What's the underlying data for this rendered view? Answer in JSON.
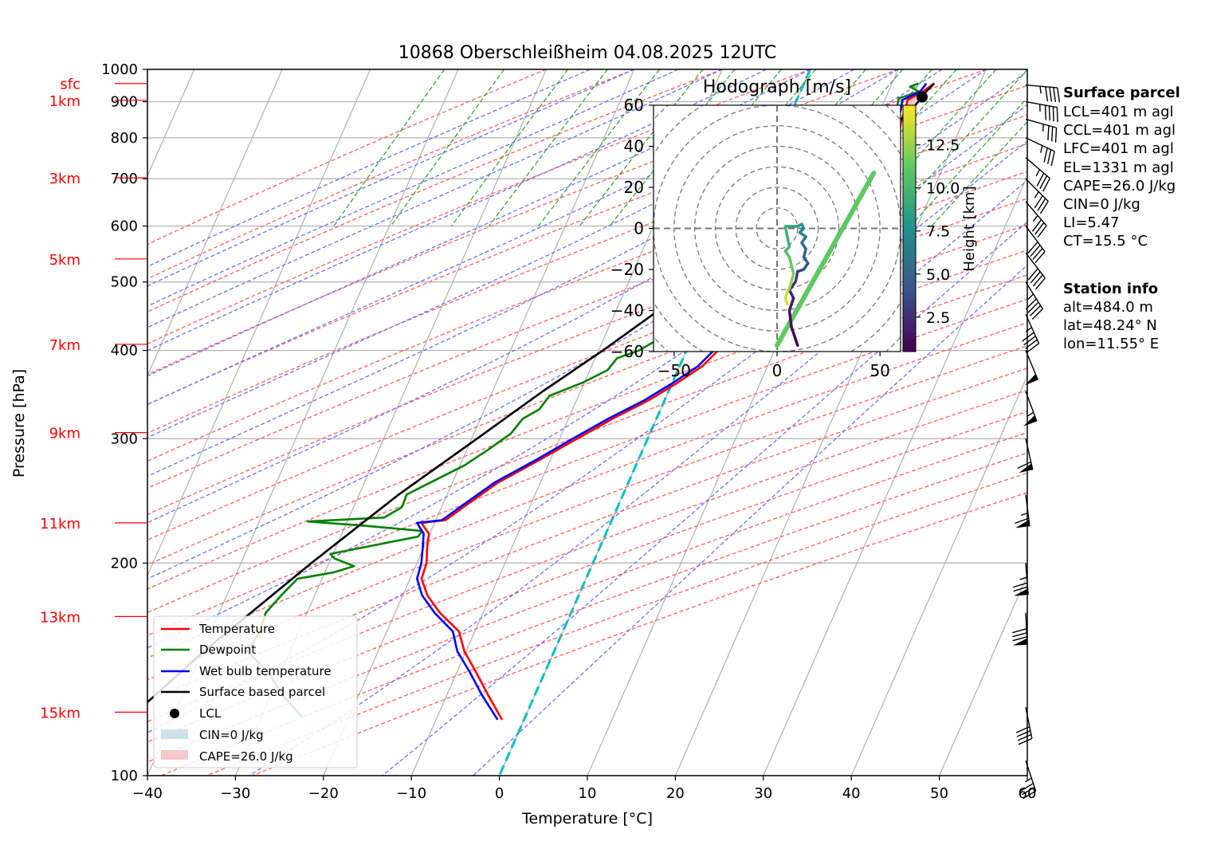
{
  "chart_data": {
    "type": "line",
    "title": "10868 Oberschleißheim 04.08.2025 12UTC",
    "xlabel": "Temperature [°C]",
    "ylabel": "Pressure [hPa]",
    "xlim": [
      -40,
      60
    ],
    "ylim": [
      1000,
      100
    ],
    "y_scale": "log",
    "x_ticks": [
      "−40",
      "−30",
      "−20",
      "−10",
      "0",
      "10",
      "20",
      "30",
      "40",
      "50",
      "60"
    ],
    "p_ticks": [
      {
        "p": 100,
        "label": "100"
      },
      {
        "p": 200,
        "label": "200"
      },
      {
        "p": 300,
        "label": "300"
      },
      {
        "p": 400,
        "label": "400"
      },
      {
        "p": 500,
        "label": "500"
      },
      {
        "p": 600,
        "label": "600"
      },
      {
        "p": 700,
        "label": "700"
      },
      {
        "p": 800,
        "label": "800"
      },
      {
        "p": 900,
        "label": "900"
      },
      {
        "p": 1000,
        "label": "1000"
      }
    ],
    "height_labels": [
      {
        "p": 123,
        "label": "15km"
      },
      {
        "p": 168,
        "label": "13km"
      },
      {
        "p": 228,
        "label": "11km"
      },
      {
        "p": 306,
        "label": "9km"
      },
      {
        "p": 408,
        "label": "7km"
      },
      {
        "p": 539,
        "label": "5km"
      },
      {
        "p": 702,
        "label": "3km"
      },
      {
        "p": 904,
        "label": "1km"
      },
      {
        "p": 955,
        "label": "sfc"
      }
    ],
    "series": [
      {
        "name": "Temperature",
        "color": "#ff0000",
        "points": [
          [
            955,
            14.8
          ],
          [
            930,
            13.9
          ],
          [
            905,
            12.6
          ],
          [
            880,
            12.8
          ],
          [
            850,
            12.9
          ],
          [
            820,
            13.2
          ],
          [
            800,
            12.5
          ],
          [
            780,
            12.2
          ],
          [
            760,
            12.8
          ],
          [
            740,
            11.9
          ],
          [
            720,
            11.8
          ],
          [
            700,
            10.8
          ],
          [
            660,
            11.3
          ],
          [
            620,
            11.5
          ],
          [
            580,
            10.7
          ],
          [
            540,
            9.5
          ],
          [
            500,
            8.1
          ],
          [
            460,
            6.2
          ],
          [
            430,
            4.5
          ],
          [
            400,
            3.6
          ],
          [
            380,
            2.6
          ],
          [
            360,
            0.6
          ],
          [
            340,
            -1.8
          ],
          [
            320,
            -5.0
          ],
          [
            300,
            -8.0
          ],
          [
            280,
            -11.2
          ],
          [
            260,
            -14.8
          ],
          [
            240,
            -17.5
          ],
          [
            230,
            -18.9
          ],
          [
            228,
            -21.5
          ],
          [
            220,
            -20.1
          ],
          [
            210,
            -19.6
          ],
          [
            200,
            -18.9
          ],
          [
            190,
            -18.7
          ],
          [
            180,
            -17.2
          ],
          [
            170,
            -14.9
          ],
          [
            160,
            -11.8
          ],
          [
            150,
            -10.2
          ],
          [
            140,
            -7.8
          ],
          [
            130,
            -5.3
          ],
          [
            120,
            -2.5
          ]
        ]
      },
      {
        "name": "Dewpoint",
        "color": "#008000",
        "points": [
          [
            955,
            13.0
          ],
          [
            945,
            12.2
          ],
          [
            930,
            13.5
          ],
          [
            910,
            11.5
          ],
          [
            880,
            11.8
          ],
          [
            850,
            12.0
          ],
          [
            820,
            11.3
          ],
          [
            800,
            11.6
          ],
          [
            770,
            10.0
          ],
          [
            760,
            8.5
          ],
          [
            750,
            9.8
          ],
          [
            740,
            12.2
          ],
          [
            730,
            10.8
          ],
          [
            700,
            10.2
          ],
          [
            660,
            9.8
          ],
          [
            620,
            8.8
          ],
          [
            580,
            7.3
          ],
          [
            540,
            6.3
          ],
          [
            500,
            5.4
          ],
          [
            460,
            4.0
          ],
          [
            440,
            2.2
          ],
          [
            430,
            0.5
          ],
          [
            420,
            -1.9
          ],
          [
            410,
            -4.3
          ],
          [
            400,
            -5.4
          ],
          [
            390,
            -7.5
          ],
          [
            375,
            -8.0
          ],
          [
            360,
            -10.2
          ],
          [
            345,
            -13.3
          ],
          [
            330,
            -13.8
          ],
          [
            320,
            -15.2
          ],
          [
            305,
            -15.8
          ],
          [
            290,
            -17.5
          ],
          [
            275,
            -19.5
          ],
          [
            260,
            -22.5
          ],
          [
            250,
            -24.6
          ],
          [
            240,
            -24.5
          ],
          [
            232,
            -26.0
          ],
          [
            229,
            -34.5
          ],
          [
            226,
            -28.0
          ],
          [
            222,
            -21.0
          ],
          [
            218,
            -21.2
          ],
          [
            212,
            -25.7
          ],
          [
            206,
            -30.3
          ],
          [
            203,
            -29.6
          ],
          [
            198,
            -27.0
          ],
          [
            194,
            -29.0
          ],
          [
            190,
            -32.8
          ],
          [
            180,
            -33.8
          ],
          [
            170,
            -34.7
          ],
          [
            160,
            -34.4
          ],
          [
            150,
            -34.9
          ],
          [
            140,
            -31.4
          ],
          [
            130,
            -28.7
          ],
          [
            121,
            -25.3
          ]
        ]
      },
      {
        "name": "Wet bulb temperature",
        "color": "#0000ff",
        "points": [
          [
            955,
            13.9
          ],
          [
            930,
            13.6
          ],
          [
            905,
            12.0
          ],
          [
            880,
            12.3
          ],
          [
            850,
            12.5
          ],
          [
            820,
            12.2
          ],
          [
            800,
            11.9
          ],
          [
            780,
            11.6
          ],
          [
            760,
            11.0
          ],
          [
            740,
            10.8
          ],
          [
            720,
            10.7
          ],
          [
            700,
            10.5
          ],
          [
            660,
            10.9
          ],
          [
            620,
            10.8
          ],
          [
            580,
            10.2
          ],
          [
            540,
            9.0
          ],
          [
            500,
            7.6
          ],
          [
            460,
            5.8
          ],
          [
            430,
            4.0
          ],
          [
            400,
            3.1
          ],
          [
            380,
            2.1
          ],
          [
            360,
            0.1
          ],
          [
            340,
            -2.3
          ],
          [
            320,
            -5.5
          ],
          [
            300,
            -8.5
          ],
          [
            280,
            -11.6
          ],
          [
            260,
            -15.2
          ],
          [
            240,
            -17.9
          ],
          [
            230,
            -19.3
          ],
          [
            228,
            -22.0
          ],
          [
            220,
            -20.7
          ],
          [
            210,
            -20.1
          ],
          [
            200,
            -19.5
          ],
          [
            190,
            -19.2
          ],
          [
            180,
            -17.8
          ],
          [
            170,
            -15.5
          ],
          [
            160,
            -12.5
          ],
          [
            150,
            -11.0
          ],
          [
            140,
            -8.5
          ],
          [
            130,
            -6.0
          ],
          [
            120,
            -3.0
          ]
        ]
      },
      {
        "name": "Surface based parcel",
        "color": "#000000",
        "points": [
          [
            955,
            14.8
          ],
          [
            930,
            14.3
          ],
          [
            914,
            14.1
          ],
          [
            880,
            13.6
          ],
          [
            850,
            12.9
          ],
          [
            800,
            11.3
          ],
          [
            750,
            9.4
          ],
          [
            700,
            7.7
          ],
          [
            650,
            5.4
          ],
          [
            600,
            3.2
          ],
          [
            550,
            0.6
          ],
          [
            500,
            -2.4
          ],
          [
            450,
            -5.6
          ],
          [
            400,
            -9.5
          ],
          [
            350,
            -14.3
          ],
          [
            300,
            -19.4
          ],
          [
            250,
            -25.5
          ],
          [
            200,
            -32.0
          ],
          [
            150,
            -39.8
          ],
          [
            120,
            -45.0
          ]
        ]
      }
    ],
    "lcl_point": {
      "p": 914,
      "t": 14.1
    },
    "legend": {
      "placement": "lower-left",
      "entries": [
        "Temperature",
        "Dewpoint",
        "Wet bulb temperature",
        "Surface based parcel",
        "LCL",
        "CIN=0 J/kg",
        "CAPE=26.0 J/kg"
      ]
    },
    "hodograph": {
      "title": "Hodograph [m/s]",
      "xlim": [
        -60,
        60
      ],
      "ylim": [
        -60,
        60
      ],
      "x_ticks": [
        "−50",
        "0",
        "50"
      ],
      "y_ticks": [
        "60",
        "40",
        "20",
        "0",
        "−20",
        "−40",
        "−60"
      ],
      "colorbar_label": "Height [km]",
      "colorbar_ticks": [
        "2.5",
        "5.0",
        "7.5",
        "10.0",
        "12.5"
      ],
      "colorbar_range": [
        0.5,
        14.8
      ],
      "trace": [
        [
          10,
          -57,
          0.5
        ],
        [
          7,
          -48,
          1.0
        ],
        [
          6,
          -40,
          1.5
        ],
        [
          8,
          -34,
          2.0
        ],
        [
          6,
          -30,
          2.5
        ],
        [
          9,
          -26,
          3.0
        ],
        [
          10,
          -21,
          3.5
        ],
        [
          13,
          -20,
          4.0
        ],
        [
          15,
          -17,
          4.5
        ],
        [
          13,
          -14,
          5.0
        ],
        [
          14,
          -10,
          5.5
        ],
        [
          12,
          -7,
          6.0
        ],
        [
          14,
          -4,
          6.5
        ],
        [
          11,
          -2,
          7.0
        ],
        [
          13,
          0,
          7.5
        ],
        [
          12,
          2,
          8.0
        ],
        [
          10,
          1,
          8.5
        ],
        [
          7,
          1,
          9.0
        ],
        [
          4,
          1,
          9.5
        ],
        [
          6,
          -9,
          10.0
        ],
        [
          4,
          -11,
          10.5
        ],
        [
          6,
          -14,
          11.0
        ],
        [
          7,
          -18,
          11.5
        ],
        [
          8,
          -22,
          12.0
        ],
        [
          7,
          -26,
          12.5
        ],
        [
          6,
          -29,
          13.0
        ],
        [
          5,
          -31,
          13.5
        ],
        [
          4,
          -34,
          14.0
        ],
        [
          5,
          -37,
          14.8
        ]
      ],
      "mean_wind_line": [
        [
          0,
          -57
        ],
        [
          47,
          27
        ]
      ]
    },
    "wind_barbs": [
      {
        "p": 950,
        "u": -24,
        "v": 2
      },
      {
        "p": 900,
        "u": -22,
        "v": 4
      },
      {
        "p": 850,
        "u": -18,
        "v": 5
      },
      {
        "p": 800,
        "u": -17,
        "v": 8
      },
      {
        "p": 750,
        "u": -14,
        "v": 12
      },
      {
        "p": 700,
        "u": -13,
        "v": 13
      },
      {
        "p": 650,
        "u": -12,
        "v": 14
      },
      {
        "p": 600,
        "u": -12,
        "v": 16
      },
      {
        "p": 550,
        "u": -13,
        "v": 17
      },
      {
        "p": 500,
        "u": -12,
        "v": 19
      },
      {
        "p": 450,
        "u": -10,
        "v": 22
      },
      {
        "p": 400,
        "u": -10,
        "v": 24
      },
      {
        "p": 350,
        "u": -10,
        "v": 27
      },
      {
        "p": 300,
        "u": -7,
        "v": 31
      },
      {
        "p": 250,
        "u": -4,
        "v": 32
      },
      {
        "p": 200,
        "u": -3,
        "v": 38
      },
      {
        "p": 170,
        "u": -2,
        "v": 40
      },
      {
        "p": 125,
        "u": -4,
        "v": 20
      },
      {
        "p": 105,
        "u": -6,
        "v": 18
      }
    ]
  },
  "surface_parcel": {
    "heading": "Surface parcel",
    "lines": [
      "LCL=401 m agl",
      "CCL=401 m agl",
      "LFC=401 m agl",
      "EL=1331 m agl",
      "CAPE=26.0 J/kg",
      "CIN=0 J/kg",
      "LI=5.47",
      "CT=15.5 °C"
    ]
  },
  "station_info": {
    "heading": "Station info",
    "lines": [
      "alt=484.0 m",
      "lat=48.24° N",
      "lon=11.55° E"
    ]
  },
  "colors": {
    "isotherm": "#b0b0b0",
    "dry_adiabat": "#ff6a6a",
    "moist_adiabat": "#6f6fff",
    "mixing_ratio": "#2ca02c",
    "zero_isotherm": "#00c0c0",
    "cin_fill": "#cfe0ee",
    "cape_fill": "#f3c9c9"
  }
}
